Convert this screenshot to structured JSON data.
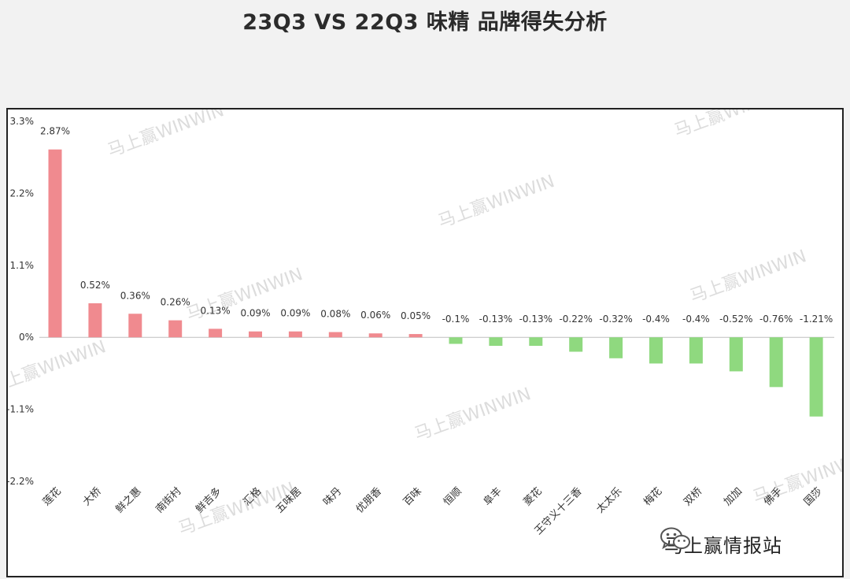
{
  "chart_data": {
    "type": "bar",
    "title": "23Q3 VS 22Q3 味精 品牌得失分析",
    "categories": [
      "莲花",
      "大桥",
      "鲜之惠",
      "南街村",
      "鲜吉多",
      "汇格",
      "五味居",
      "味丹",
      "优朋香",
      "百味",
      "恒顺",
      "阜丰",
      "菱花",
      "王守义十三香",
      "太太乐",
      "梅花",
      "双桥",
      "加加",
      "佛手",
      "国莎"
    ],
    "values": [
      2.87,
      0.52,
      0.36,
      0.26,
      0.13,
      0.09,
      0.09,
      0.08,
      0.06,
      0.05,
      -0.1,
      -0.13,
      -0.13,
      -0.22,
      -0.32,
      -0.4,
      -0.4,
      -0.52,
      -0.76,
      -1.21
    ],
    "value_labels": [
      "2.87%",
      "0.52%",
      "0.36%",
      "0.26%",
      "0.13%",
      "0.09%",
      "0.09%",
      "0.08%",
      "0.06%",
      "0.05%",
      "-0.1%",
      "-0.13%",
      "-0.13%",
      "-0.22%",
      "-0.32%",
      "-0.4%",
      "-0.4%",
      "-0.52%",
      "-0.76%",
      "-1.21%"
    ],
    "yticks": [
      3.3,
      2.2,
      1.1,
      0,
      -1.1,
      -2.2
    ],
    "ytick_labels": [
      "3.3%",
      "2.2%",
      "1.1%",
      "0%",
      "-1.1%",
      "-2.2%"
    ],
    "ylim": [
      -2.2,
      3.3
    ],
    "xlabel": "",
    "ylabel": "",
    "grid": false,
    "positive_color": "#f08a8f",
    "negative_color": "#8fd97f"
  },
  "watermark": "马上赢WINWIN",
  "logo": {
    "text": "马上赢情报站",
    "icon": "wechat-icon"
  }
}
